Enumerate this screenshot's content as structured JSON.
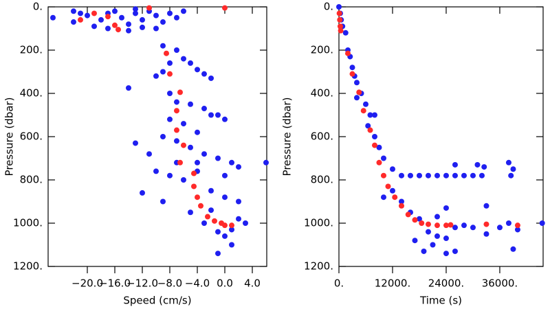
{
  "chart_data": [
    {
      "type": "scatter",
      "x_label": "Speed (cm/s)",
      "y_label": "Pressure (dbar)",
      "xlim": [
        -25.7,
        6.1
      ],
      "ylim": [
        1200,
        0
      ],
      "y_inverted": true,
      "xticks": [
        {
          "value": -20,
          "label": "−20.0"
        },
        {
          "value": -16,
          "label": "−16.0"
        },
        {
          "value": -12,
          "label": "−12.0"
        },
        {
          "value": -8,
          "label": "−8.0"
        },
        {
          "value": -4,
          "label": "−4.0"
        },
        {
          "value": 0,
          "label": "0.0"
        },
        {
          "value": 4,
          "label": "4.0"
        }
      ],
      "yticks": [
        {
          "value": 0,
          "label": "0."
        },
        {
          "value": 200,
          "label": "200."
        },
        {
          "value": 400,
          "label": "400."
        },
        {
          "value": 600,
          "label": "600."
        },
        {
          "value": 800,
          "label": "800."
        },
        {
          "value": 1000,
          "label": "1000."
        },
        {
          "value": 1200,
          "label": "1200."
        }
      ],
      "series": [
        {
          "color": "#1f1ff0",
          "x": [
            -25,
            -22,
            -20,
            -18,
            -17,
            -16,
            -15,
            -14,
            -13,
            -12,
            -11,
            -10,
            -9,
            -8,
            -7,
            -19,
            -17,
            -14,
            -12,
            -10,
            -22,
            -21,
            -13,
            -6,
            -9,
            -7,
            -6,
            -5,
            -4,
            -8,
            -9,
            -10,
            -3,
            -2,
            -14,
            -8,
            -7,
            -5,
            -3,
            -1,
            -8,
            -6,
            -4,
            -2,
            0,
            -9,
            -7,
            -5,
            -3,
            -1,
            1,
            2,
            -13,
            -11,
            -12,
            -9,
            -8,
            -6,
            -4,
            -2,
            0,
            2,
            -5,
            -3,
            -1,
            0,
            1,
            -1,
            2,
            3,
            6,
            -7,
            -10,
            -4,
            0,
            -2,
            1
          ],
          "values": [
            50,
            20,
            40,
            60,
            30,
            20,
            50,
            80,
            30,
            60,
            20,
            40,
            70,
            30,
            50,
            90,
            100,
            110,
            95,
            100,
            70,
            30,
            10,
            20,
            180,
            200,
            240,
            260,
            290,
            260,
            300,
            320,
            310,
            330,
            375,
            400,
            440,
            450,
            470,
            500,
            520,
            540,
            580,
            500,
            520,
            600,
            620,
            650,
            680,
            700,
            720,
            740,
            630,
            680,
            860,
            900,
            780,
            800,
            760,
            850,
            880,
            900,
            950,
            1000,
            1040,
            1060,
            1100,
            1140,
            980,
            1000,
            720,
            720,
            760,
            720,
            780,
            940,
            1030
          ]
        },
        {
          "color": "#ff2a2a",
          "x": [
            -21,
            -19,
            -17,
            -16,
            -15.5,
            -11,
            0,
            -8.5,
            -8,
            -6.5,
            -7,
            -7,
            -6,
            -6.5,
            -4.5,
            -4.5,
            -4,
            -3.5,
            -2.5,
            -1.5,
            -0.5,
            0,
            1
          ],
          "values": [
            60,
            30,
            45,
            85,
            105,
            5,
            5,
            215,
            310,
            395,
            480,
            570,
            640,
            720,
            770,
            830,
            880,
            920,
            970,
            990,
            1000,
            1010,
            1010
          ]
        }
      ]
    },
    {
      "type": "scatter",
      "x_label": "Time (s)",
      "y_label": "Pressure (dbar)",
      "xlim": [
        0,
        45700
      ],
      "ylim": [
        1200,
        0
      ],
      "y_inverted": true,
      "xticks": [
        {
          "value": 0,
          "label": "0."
        },
        {
          "value": 12000,
          "label": "12000."
        },
        {
          "value": 24000,
          "label": "24000."
        },
        {
          "value": 36000,
          "label": "36000."
        }
      ],
      "yticks": [
        {
          "value": 0,
          "label": "0."
        },
        {
          "value": 200,
          "label": "200."
        },
        {
          "value": 400,
          "label": "400."
        },
        {
          "value": 600,
          "label": "600."
        },
        {
          "value": 800,
          "label": "800."
        },
        {
          "value": 1000,
          "label": "1000."
        },
        {
          "value": 1200,
          "label": "1200."
        }
      ],
      "series": [
        {
          "color": "#1f1ff0",
          "x": [
            0,
            300,
            500,
            800,
            1500,
            2000,
            2500,
            3000,
            3500,
            4000,
            5000,
            6000,
            7000,
            6500,
            8000,
            9000,
            10000,
            12000,
            14000,
            16000,
            18000,
            20000,
            22000,
            24000,
            26000,
            28000,
            30000,
            32000,
            31000,
            32500,
            38000,
            39000,
            38500,
            12000,
            14000,
            16000,
            18000,
            20000,
            22000,
            24000,
            26000,
            28000,
            30000,
            33000,
            33000,
            36000,
            38000,
            40000,
            39000,
            45500,
            19000,
            24000,
            26000,
            8000,
            4000,
            10000,
            22000,
            24000,
            26000,
            21000,
            17000
          ],
          "values": [
            0,
            30,
            60,
            90,
            120,
            200,
            230,
            280,
            320,
            350,
            400,
            450,
            500,
            550,
            600,
            650,
            700,
            750,
            780,
            780,
            780,
            780,
            780,
            780,
            780,
            780,
            780,
            780,
            730,
            740,
            720,
            750,
            780,
            850,
            900,
            950,
            980,
            1040,
            1060,
            1070,
            1020,
            1010,
            1020,
            920,
            1050,
            1020,
            1000,
            1030,
            1120,
            1000,
            1130,
            1140,
            1130,
            500,
            420,
            880,
            970,
            930,
            730,
            1100,
            1080
          ]
        },
        {
          "color": "#ff2a2a",
          "x": [
            100,
            200,
            300,
            400,
            2000,
            3000,
            4500,
            5500,
            7000,
            8000,
            9000,
            10000,
            11000,
            12500,
            14000,
            15500,
            17000,
            18500,
            20000,
            22000,
            24000,
            25000,
            33000,
            40000
          ],
          "values": [
            30,
            60,
            90,
            110,
            215,
            310,
            395,
            480,
            570,
            640,
            720,
            780,
            830,
            880,
            920,
            960,
            985,
            1000,
            1005,
            1010,
            1010,
            1008,
            1005,
            1010
          ]
        }
      ]
    }
  ]
}
